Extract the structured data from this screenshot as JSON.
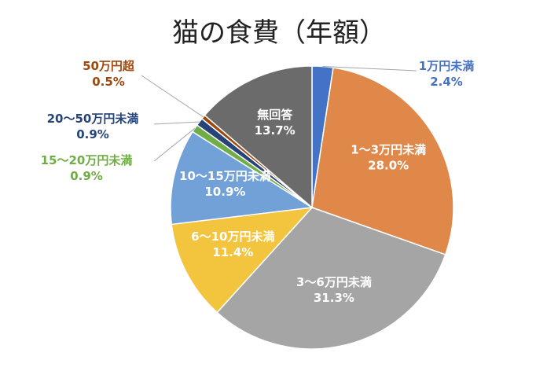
{
  "chart_data": {
    "type": "pie",
    "title": "猫の食費（年額）",
    "start_angle_deg": 0,
    "direction": "clockwise",
    "slices": [
      {
        "label": "1万円未満",
        "value": 2.4,
        "display": "2.4%",
        "color": "#4472C4",
        "label_position": "outside",
        "label_color": "#4472C4"
      },
      {
        "label": "1～3万円未満",
        "value": 28.0,
        "display": "28.0%",
        "color": "#E0884A",
        "label_position": "inside",
        "label_color": "#FFFFFF"
      },
      {
        "label": "3～6万円未満",
        "value": 31.3,
        "display": "31.3%",
        "color": "#A5A5A5",
        "label_position": "inside",
        "label_color": "#FFFFFF"
      },
      {
        "label": "6～10万円未満",
        "value": 11.4,
        "display": "11.4%",
        "color": "#F3C43E",
        "label_position": "inside",
        "label_color": "#FFFFFF"
      },
      {
        "label": "10～15万円未満",
        "value": 10.9,
        "display": "10.9%",
        "color": "#72A1D8",
        "label_position": "inside",
        "label_color": "#FFFFFF"
      },
      {
        "label": "15～20万円未満",
        "value": 0.9,
        "display": "0.9%",
        "color": "#70AD47",
        "label_position": "outside",
        "label_color": "#70AD47"
      },
      {
        "label": "20～50万円未満",
        "value": 0.9,
        "display": "0.9%",
        "color": "#264478",
        "label_position": "outside",
        "label_color": "#264478"
      },
      {
        "label": "50万円超",
        "value": 0.5,
        "display": "0.5%",
        "color": "#9E480E",
        "label_position": "outside",
        "label_color": "#9E480E"
      },
      {
        "label": "無回答",
        "value": 13.7,
        "display": "13.7%",
        "color": "#6B6B6B",
        "label_position": "inside",
        "label_color": "#FFFFFF"
      }
    ]
  }
}
